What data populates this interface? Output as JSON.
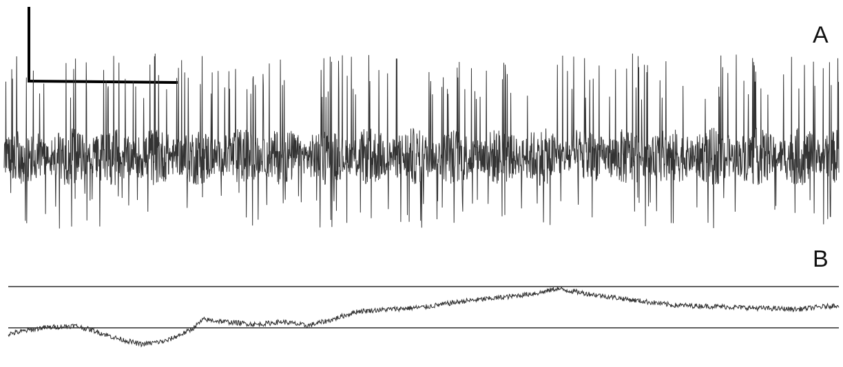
{
  "chart_data": [
    {
      "type": "line",
      "panel_label": "A",
      "title": "",
      "xlabel": "",
      "ylabel": "",
      "grid": false,
      "legend": "none",
      "scale_bar": true,
      "trace_color": "#333333",
      "series": [
        {
          "name": "",
          "waveform": "spiking-extracellular-recording",
          "baseline": 0,
          "noise_amplitude": 0.28,
          "peak_up_range": [
            0.55,
            1.0
          ],
          "peak_down_range": [
            0.35,
            0.7
          ],
          "spike_rate_per_100_samples": 10
        }
      ],
      "xlim": [
        0,
        1
      ],
      "ylim": [
        -1,
        1
      ]
    },
    {
      "type": "line",
      "panel_label": "B",
      "title": "",
      "xlabel": "",
      "ylabel": "",
      "grid": false,
      "legend": "none",
      "reference_lines": [
        1,
        0
      ],
      "trace_color": "#333333",
      "series": [
        {
          "name": "",
          "x": [
            0,
            0.04,
            0.08,
            0.1,
            0.13,
            0.16,
            0.19,
            0.22,
            0.235,
            0.26,
            0.3,
            0.33,
            0.36,
            0.39,
            0.42,
            0.46,
            0.5,
            0.55,
            0.6,
            0.64,
            0.66,
            0.7,
            0.75,
            0.8,
            0.85,
            0.9,
            0.95,
            1.0
          ],
          "values": [
            -0.15,
            0.0,
            0.05,
            -0.05,
            -0.25,
            -0.4,
            -0.32,
            -0.05,
            0.2,
            0.15,
            0.08,
            0.15,
            0.05,
            0.2,
            0.4,
            0.45,
            0.5,
            0.65,
            0.75,
            0.85,
            0.95,
            0.82,
            0.68,
            0.55,
            0.52,
            0.48,
            0.45,
            0.55
          ]
        }
      ],
      "xlim": [
        0,
        1
      ],
      "ylim": [
        -1,
        1
      ]
    }
  ]
}
